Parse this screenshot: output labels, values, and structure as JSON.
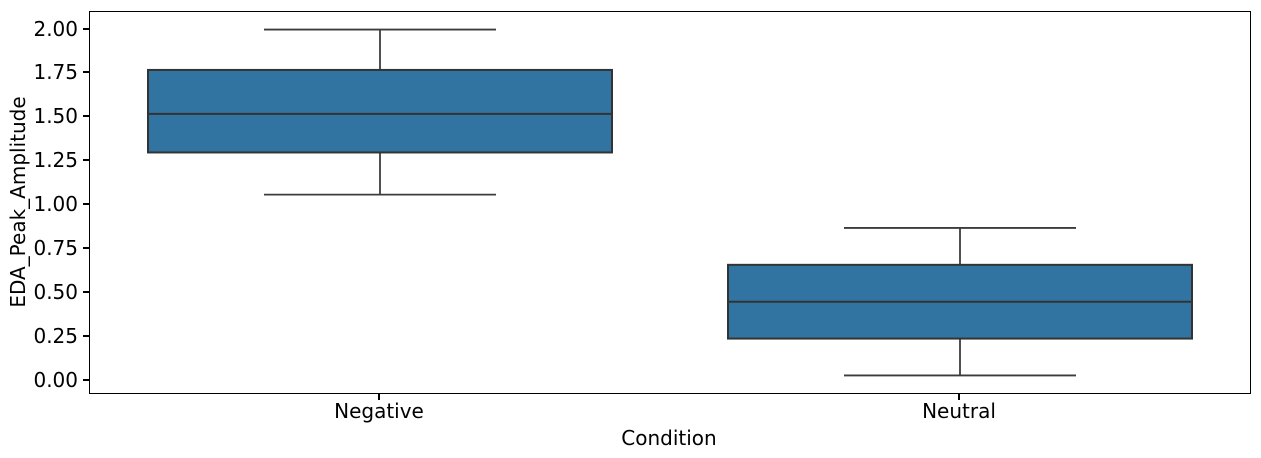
{
  "chart_data": {
    "type": "boxplot",
    "title": "",
    "xlabel": "Condition",
    "ylabel": "EDA_Peak_Amplitude",
    "categories": [
      "Negative",
      "Neutral"
    ],
    "ytick_labels": [
      "0.00",
      "0.25",
      "0.50",
      "0.75",
      "1.00",
      "1.25",
      "1.50",
      "1.75",
      "2.00"
    ],
    "yticks": [
      0.0,
      0.25,
      0.5,
      0.75,
      1.0,
      1.25,
      1.5,
      1.75,
      2.0
    ],
    "ylim": [
      -0.07,
      2.1
    ],
    "grid": false,
    "legend": null,
    "series": [
      {
        "category": "Negative",
        "whisker_low": 1.06,
        "q1": 1.3,
        "median": 1.52,
        "q3": 1.77,
        "whisker_high": 2.0,
        "outliers": []
      },
      {
        "category": "Neutral",
        "whisker_low": 0.03,
        "q1": 0.24,
        "median": 0.45,
        "q3": 0.66,
        "whisker_high": 0.87,
        "outliers": []
      }
    ],
    "colors": {
      "box_fill": "#3274a1",
      "box_edge": "#333333",
      "whisker": "#3c3c3c",
      "spine": "#000000",
      "text": "#000000"
    },
    "box_width_frac": 0.8,
    "cap_width_frac": 0.4
  }
}
